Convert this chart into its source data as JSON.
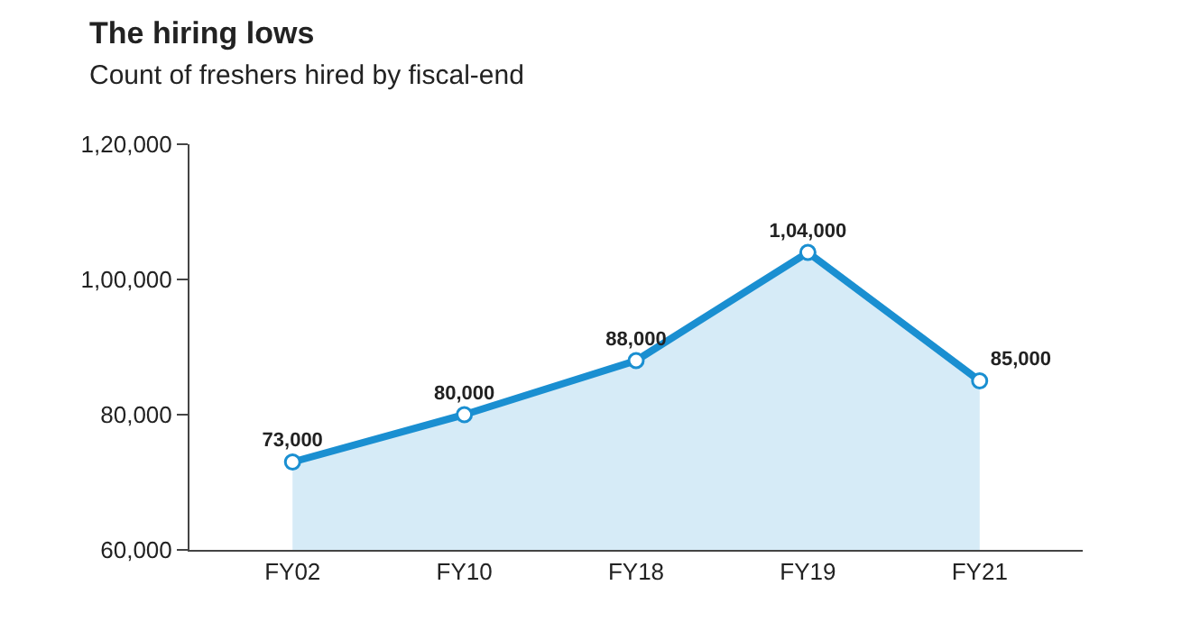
{
  "chart_data": {
    "type": "area",
    "title": "The hiring lows",
    "subtitle": "Count of freshers hired by fiscal-end",
    "categories": [
      "FY02",
      "FY10",
      "FY18",
      "FY19",
      "FY21"
    ],
    "series": [
      {
        "color": "#1a8fd1",
        "values": [
          73000,
          80000,
          88000,
          104000,
          85000
        ],
        "value_labels": [
          "73,000",
          "80,000",
          "88,000",
          "1,04,000",
          "85,000"
        ]
      }
    ],
    "ylim": [
      60000,
      120000
    ],
    "yticks": [
      {
        "value": 60000,
        "label": "60,000"
      },
      {
        "value": 80000,
        "label": "80,000"
      },
      {
        "value": 100000,
        "label": "1,00,000"
      },
      {
        "value": 120000,
        "label": "1,20,000"
      }
    ],
    "marker": "circle",
    "line_style": "solid"
  }
}
